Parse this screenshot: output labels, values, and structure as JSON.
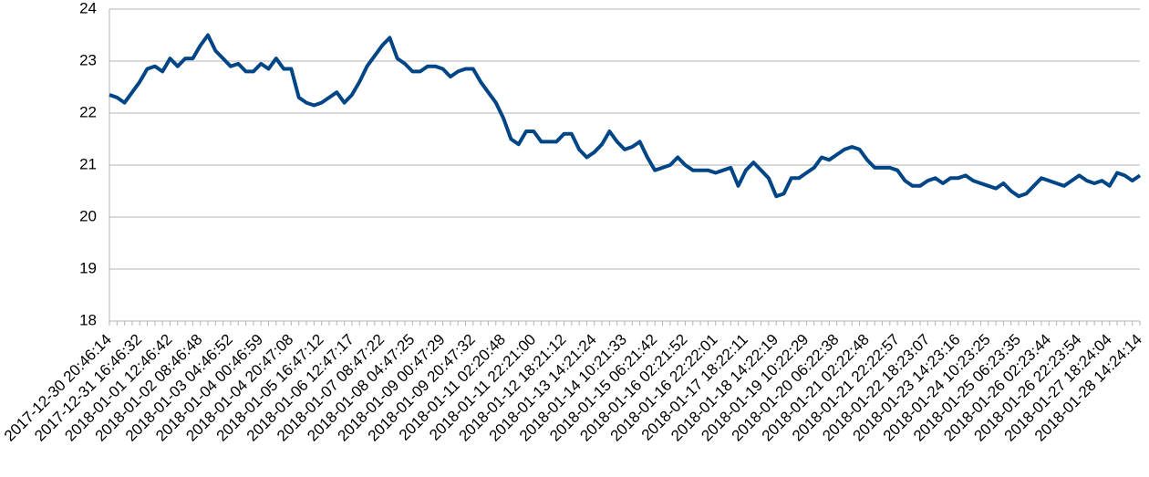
{
  "chart_data": {
    "type": "line",
    "color": "#004586",
    "grid": true,
    "ylim": [
      18,
      24
    ],
    "yticks": [
      18,
      19,
      20,
      21,
      22,
      23,
      24
    ],
    "categories": [
      "2017-12-30 20:46:14",
      null,
      null,
      null,
      "2017-12-31 16:46:32",
      null,
      null,
      null,
      "2018-01-01 12:46:42",
      null,
      null,
      null,
      "2018-01-02 08:46:48",
      null,
      null,
      null,
      "2018-01-03 04:46:52",
      null,
      null,
      null,
      "2018-01-04 00:46:59",
      null,
      null,
      null,
      "2018-01-04 20:47:08",
      null,
      null,
      null,
      "2018-01-05 16:47:12",
      null,
      null,
      null,
      "2018-01-06 12:47:17",
      null,
      null,
      null,
      "2018-01-07 08:47:22",
      null,
      null,
      null,
      "2018-01-08 04:47:25",
      null,
      null,
      null,
      "2018-01-09 00:47:29",
      null,
      null,
      null,
      "2018-01-09 20:47:32",
      null,
      null,
      null,
      "2018-01-11 02:20:48",
      null,
      null,
      null,
      "2018-01-11 22:21:00",
      null,
      null,
      null,
      "2018-01-12 18:21:12",
      null,
      null,
      null,
      "2018-01-13 14:21:24",
      null,
      null,
      null,
      "2018-01-14 10:21:33",
      null,
      null,
      null,
      "2018-01-15 06:21:42",
      null,
      null,
      null,
      "2018-01-16 02:21:52",
      null,
      null,
      null,
      "2018-01-16 22:22:01",
      null,
      null,
      null,
      "2018-01-17 18:22:11",
      null,
      null,
      null,
      "2018-01-18 14:22:19",
      null,
      null,
      null,
      "2018-01-19 10:22:29",
      null,
      null,
      null,
      "2018-01-20 06:22:38",
      null,
      null,
      null,
      "2018-01-21 02:22:48",
      null,
      null,
      null,
      "2018-01-21 22:22:57",
      null,
      null,
      null,
      "2018-01-22 18:23:07",
      null,
      null,
      null,
      "2018-01-23 14:23:16",
      null,
      null,
      null,
      "2018-01-24 10:23:25",
      null,
      null,
      null,
      "2018-01-25 06:23:35",
      null,
      null,
      null,
      "2018-01-26 02:23:44",
      null,
      null,
      null,
      "2018-01-26 22:23:54",
      null,
      null,
      null,
      "2018-01-27 18:24:04",
      null,
      null,
      null,
      "2018-01-28 14:24:14"
    ],
    "values": [
      22.35,
      22.3,
      22.2,
      22.4,
      22.6,
      22.85,
      22.9,
      22.8,
      23.05,
      22.9,
      23.05,
      23.05,
      23.3,
      23.5,
      23.2,
      23.05,
      22.9,
      22.95,
      22.8,
      22.8,
      22.95,
      22.85,
      23.05,
      22.85,
      22.85,
      22.3,
      22.2,
      22.15,
      22.2,
      22.3,
      22.4,
      22.2,
      22.35,
      22.6,
      22.9,
      23.1,
      23.3,
      23.45,
      23.05,
      22.95,
      22.8,
      22.8,
      22.9,
      22.9,
      22.85,
      22.7,
      22.8,
      22.85,
      22.85,
      22.6,
      22.4,
      22.2,
      21.9,
      21.5,
      21.4,
      21.65,
      21.65,
      21.45,
      21.45,
      21.45,
      21.6,
      21.6,
      21.3,
      21.15,
      21.25,
      21.4,
      21.65,
      21.45,
      21.3,
      21.35,
      21.45,
      21.15,
      20.9,
      20.95,
      21.0,
      21.15,
      21.0,
      20.9,
      20.9,
      20.9,
      20.85,
      20.9,
      20.95,
      20.6,
      20.9,
      21.05,
      20.9,
      20.75,
      20.4,
      20.45,
      20.75,
      20.75,
      20.85,
      20.95,
      21.15,
      21.1,
      21.2,
      21.3,
      21.35,
      21.3,
      21.1,
      20.95,
      20.95,
      20.95,
      20.9,
      20.7,
      20.6,
      20.6,
      20.7,
      20.75,
      20.65,
      20.75,
      20.75,
      20.8,
      20.7,
      20.65,
      20.6,
      20.55,
      20.65,
      20.5,
      20.4,
      20.45,
      20.6,
      20.75,
      20.7,
      20.65,
      20.6,
      20.7,
      20.8,
      20.7,
      20.65,
      20.7,
      20.6,
      20.85,
      20.8,
      20.7,
      20.8
    ]
  }
}
